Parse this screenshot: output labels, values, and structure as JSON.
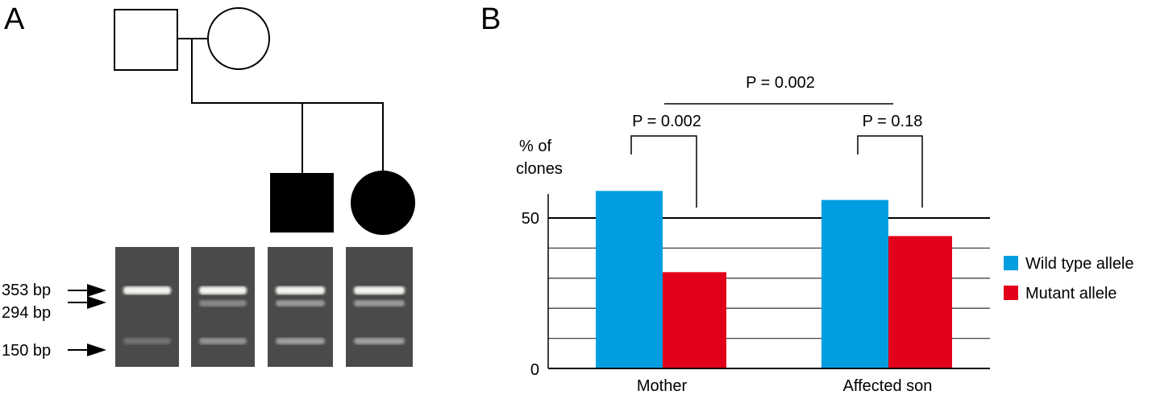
{
  "panels": {
    "a": "A",
    "b": "B"
  },
  "gel": {
    "markers": [
      "353 bp",
      "294 bp",
      "150 bp"
    ],
    "marker_bp": [
      353,
      294,
      150
    ],
    "lanes": [
      {
        "bands": [
          353,
          150
        ],
        "intensity": [
          1,
          0.15
        ]
      },
      {
        "bands": [
          353,
          294,
          150
        ],
        "intensity": [
          1,
          0.35,
          0.45
        ]
      },
      {
        "bands": [
          353,
          294,
          150
        ],
        "intensity": [
          1,
          0.5,
          0.55
        ]
      },
      {
        "bands": [
          353,
          294,
          150
        ],
        "intensity": [
          1,
          0.5,
          0.55
        ]
      }
    ]
  },
  "chart_data": {
    "type": "bar",
    "categories": [
      "Mother",
      "Affected son"
    ],
    "series": [
      {
        "name": "Wild type allele",
        "color": "#009ee0",
        "values": [
          59,
          56
        ]
      },
      {
        "name": "Mutant allele",
        "color": "#e2001a",
        "values": [
          32,
          44
        ]
      }
    ],
    "ylabel": "% of clones",
    "ylabel_lines": [
      "% of",
      "clones"
    ],
    "yticks": [
      "0",
      "50"
    ],
    "ytick_values": [
      0,
      50
    ],
    "gridlines": [
      10,
      20,
      30,
      40,
      50
    ],
    "ylim": [
      0,
      58
    ],
    "legend": "right",
    "annotations": {
      "mother": "P = 0.002",
      "son": "P = 0.18",
      "between": "P = 0.002"
    }
  }
}
